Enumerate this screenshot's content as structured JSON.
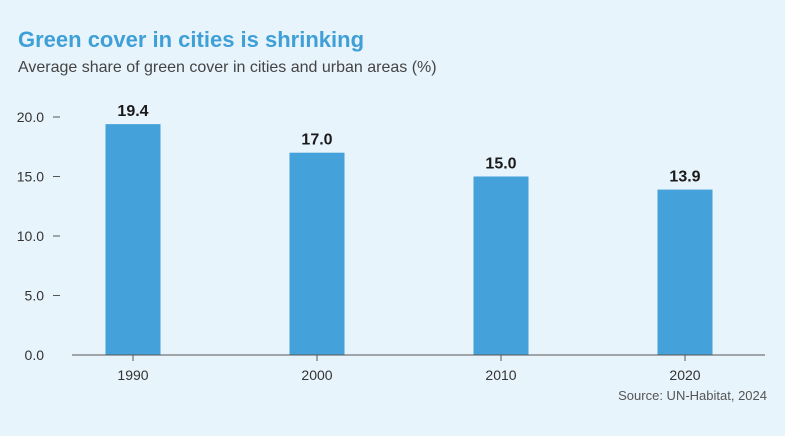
{
  "header": {
    "title": "Green cover in cities is shrinking",
    "subtitle": "Average share of green cover in cities and urban areas (%)"
  },
  "footer": {
    "source": "Source: UN-Habitat, 2024"
  },
  "colors": {
    "background": "#e8f4fb",
    "bar": "#44a1d9",
    "title": "#3f9fd7",
    "value_label": "#1a1a1a",
    "axis": "#555555"
  },
  "chart_data": {
    "type": "bar",
    "title": "Green cover in cities is shrinking",
    "subtitle": "Average share of green cover in cities and urban areas (%)",
    "categories": [
      "1990",
      "2000",
      "2010",
      "2020"
    ],
    "values": [
      19.4,
      17.0,
      15.0,
      13.9
    ],
    "value_labels": [
      "19.4",
      "17.0",
      "15.0",
      "13.9"
    ],
    "ylim": [
      0,
      20
    ],
    "yticks": [
      0,
      5,
      10,
      15,
      20
    ],
    "ytick_labels": [
      "0.0",
      "5.0",
      "10.0",
      "15.0",
      "20.0"
    ],
    "xlabel": "",
    "ylabel": "",
    "grid": false,
    "legend": "none"
  }
}
